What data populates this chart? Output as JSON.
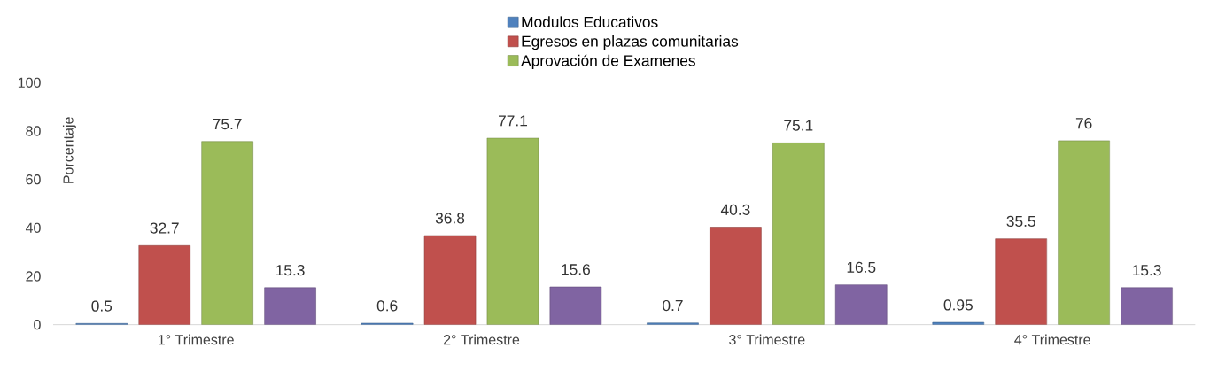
{
  "chart_data": {
    "type": "bar",
    "ylabel": "Porcentaje",
    "categories": [
      "1° Trimestre",
      "2° Trimestre",
      "3° Trimestre",
      "4° Trimestre"
    ],
    "series": [
      {
        "name": "Modulos Educativos",
        "color": "#4f81bd",
        "values": [
          0.5,
          0.6,
          0.7,
          0.95
        ]
      },
      {
        "name": "Egresos en plazas comunitarias",
        "color": "#c0504d",
        "values": [
          32.7,
          36.8,
          40.3,
          35.5
        ]
      },
      {
        "name": "Aprovación de Examenes",
        "color": "#9bbb59",
        "values": [
          75.7,
          77.1,
          75.1,
          76
        ]
      },
      {
        "color": "#8064a2",
        "values": [
          15.3,
          15.6,
          16.5,
          15.3
        ]
      }
    ],
    "ylim": [
      0,
      100
    ],
    "yticks": [
      0,
      20,
      40,
      60,
      80,
      100
    ],
    "data_labels": true,
    "grid": false,
    "legend": "top"
  }
}
